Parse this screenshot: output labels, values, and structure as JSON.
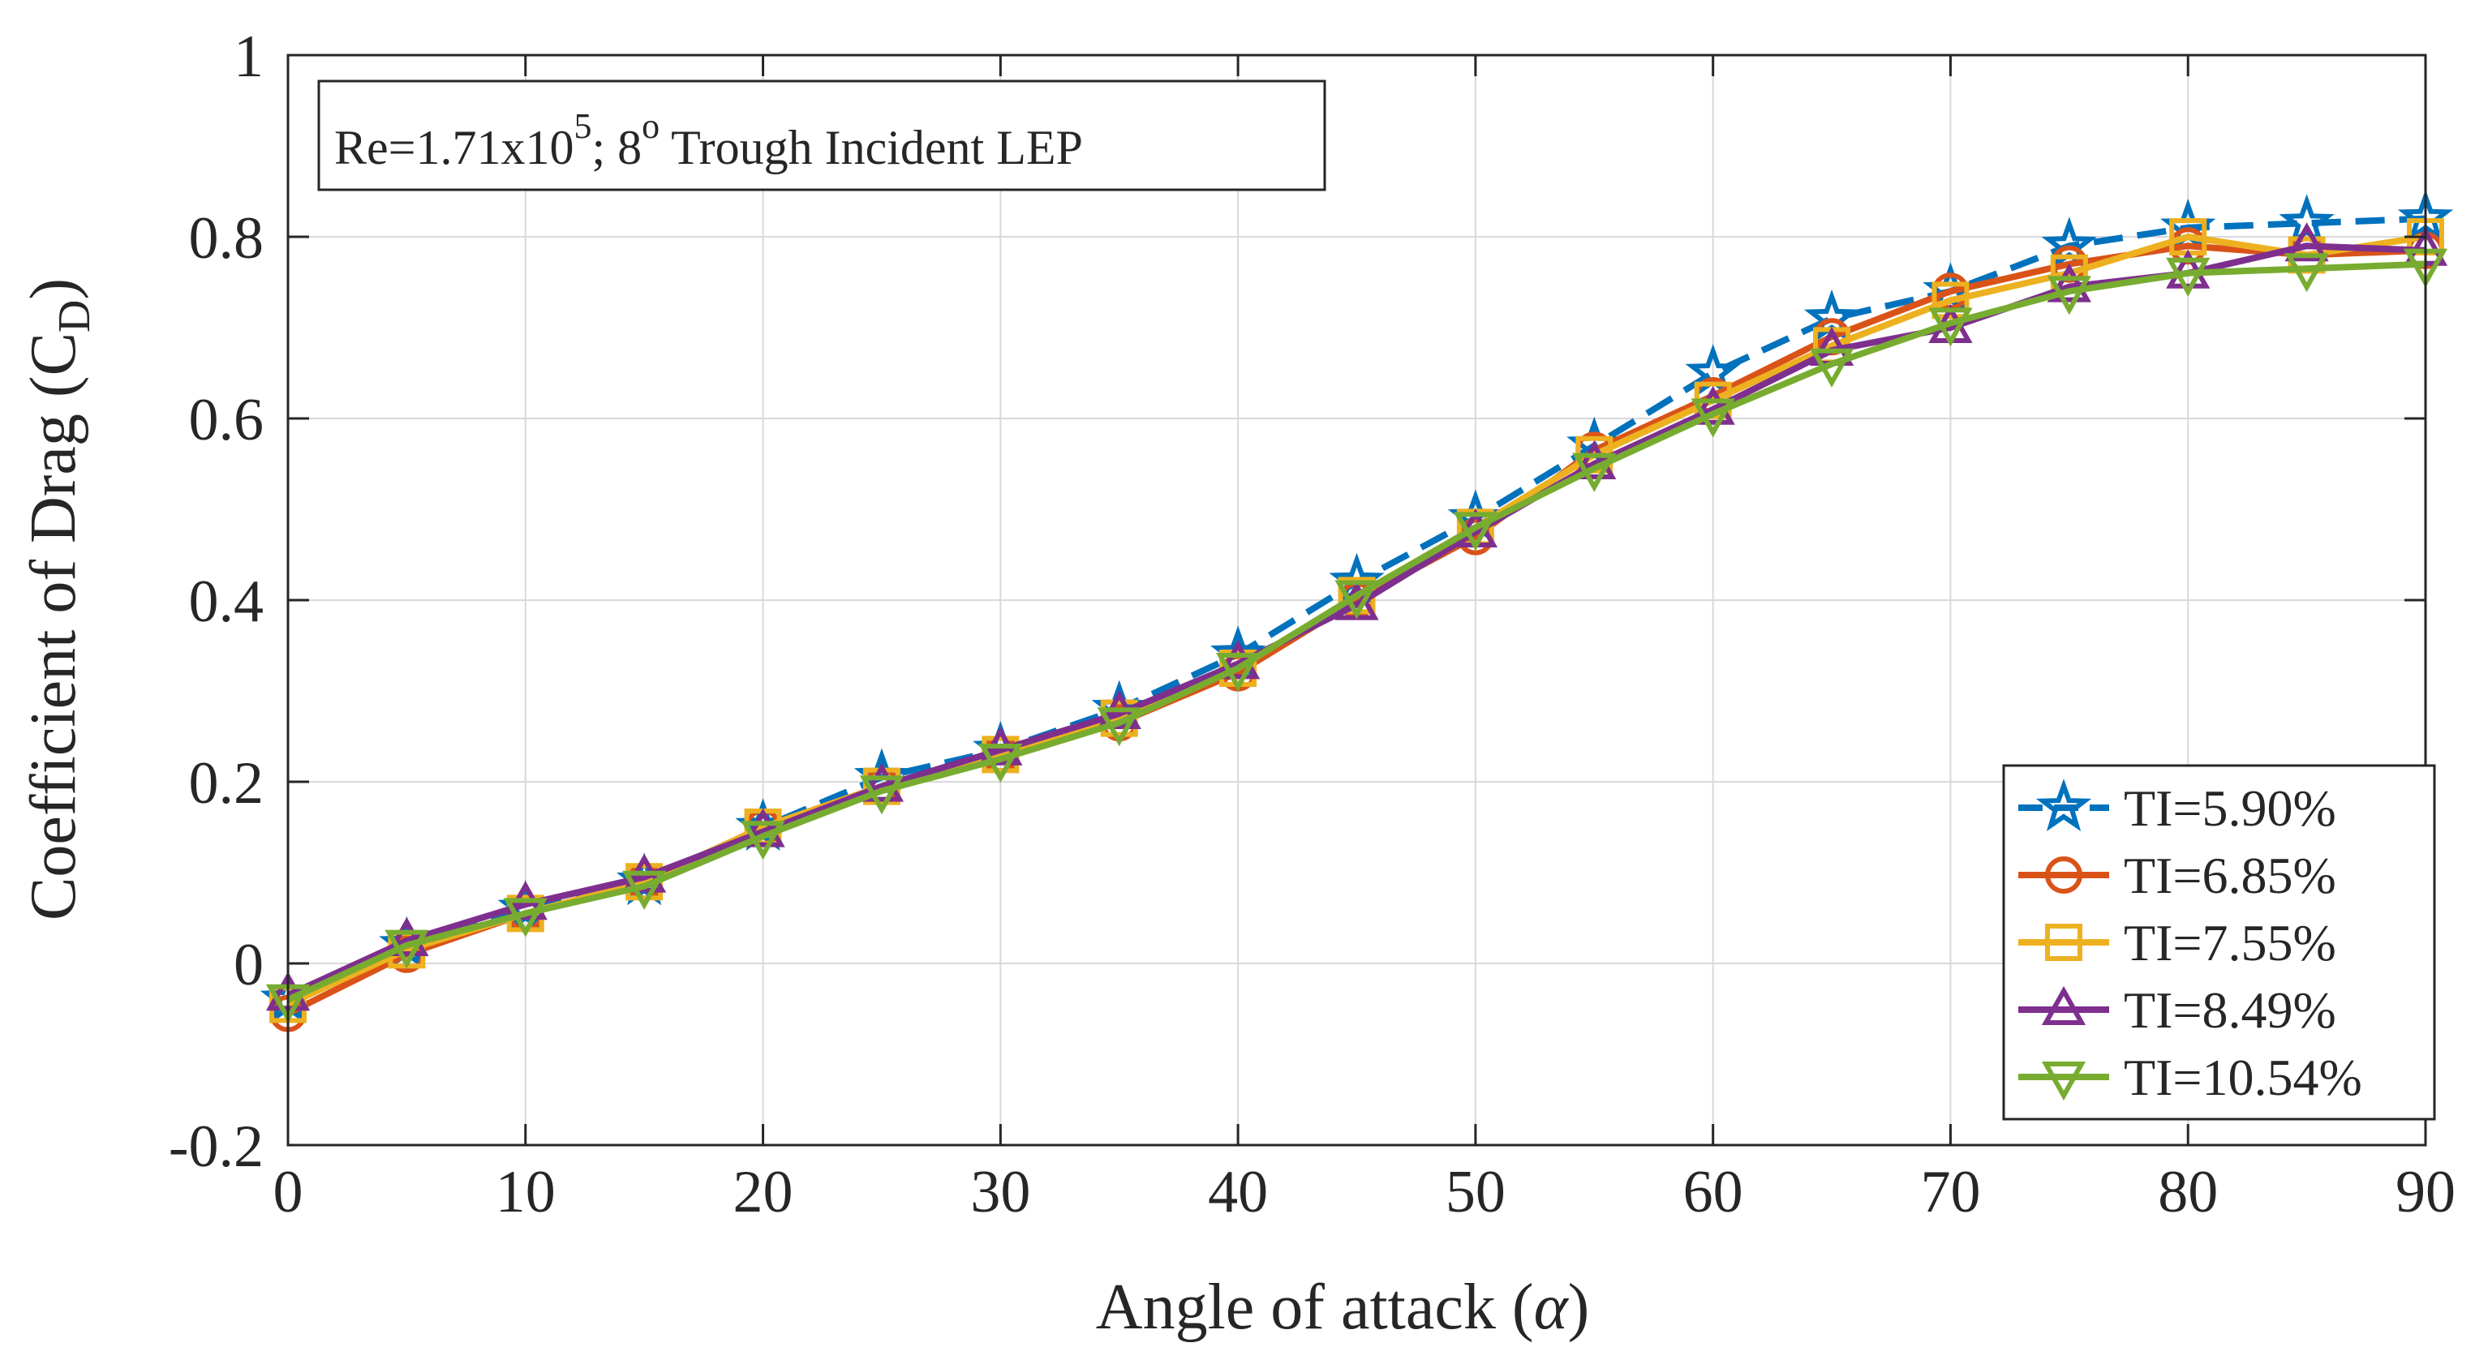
{
  "chart_data": {
    "type": "line",
    "xlabel": "Angle of attack (",
    "xlabel_symbol": "α",
    "xlabel_end": ")",
    "ylabel": "Coefficient of Drag (C",
    "ylabel_sub": "D",
    "ylabel_end": ")",
    "xlim": [
      0,
      90
    ],
    "ylim": [
      -0.2,
      1
    ],
    "xticks": [
      0,
      10,
      20,
      30,
      40,
      50,
      60,
      70,
      80,
      90
    ],
    "yticks": [
      -0.2,
      0,
      0.2,
      0.4,
      0.6,
      0.8,
      1
    ],
    "ytick_labels": [
      "-0.2",
      "0",
      "0.2",
      "0.4",
      "0.6",
      "0.8",
      "1"
    ],
    "grid": true,
    "legend_position": "bottom-right",
    "annotation": {
      "prefix": "Re=1.71x10",
      "sup1": "5",
      "middle": "; 8",
      "sup2": "o",
      "suffix": " Trough Incident LEP"
    },
    "x": [
      0,
      5,
      10,
      15,
      20,
      25,
      30,
      35,
      40,
      45,
      50,
      55,
      60,
      65,
      70,
      75,
      80,
      85,
      90
    ],
    "series": [
      {
        "name": "TI=5.90%",
        "color": "#0072BD",
        "marker": "star",
        "dashed": true,
        "values": [
          -0.04,
          0.02,
          0.06,
          0.09,
          0.15,
          0.205,
          0.235,
          0.28,
          0.34,
          0.42,
          0.49,
          0.57,
          0.65,
          0.71,
          0.74,
          0.79,
          0.81,
          0.815,
          0.82
        ]
      },
      {
        "name": "TI=6.85%",
        "color": "#D95319",
        "marker": "circle",
        "dashed": false,
        "values": [
          -0.055,
          0.01,
          0.055,
          0.09,
          0.15,
          0.195,
          0.23,
          0.265,
          0.32,
          0.4,
          0.47,
          0.565,
          0.625,
          0.69,
          0.74,
          0.77,
          0.79,
          0.78,
          0.785
        ]
      },
      {
        "name": "TI=7.55%",
        "color": "#EDB120",
        "marker": "square",
        "dashed": false,
        "values": [
          -0.045,
          0.015,
          0.055,
          0.09,
          0.15,
          0.195,
          0.23,
          0.27,
          0.325,
          0.405,
          0.48,
          0.56,
          0.62,
          0.68,
          0.73,
          0.76,
          0.8,
          0.78,
          0.8
        ]
      },
      {
        "name": "TI=8.49%",
        "color": "#7E2F8E",
        "marker": "triangle-up",
        "dashed": false,
        "values": [
          -0.035,
          0.025,
          0.065,
          0.095,
          0.145,
          0.195,
          0.235,
          0.275,
          0.33,
          0.395,
          0.475,
          0.55,
          0.61,
          0.675,
          0.7,
          0.745,
          0.76,
          0.79,
          0.785
        ]
      },
      {
        "name": "TI=10.54%",
        "color": "#77AC30",
        "marker": "triangle-down",
        "dashed": false,
        "values": [
          -0.04,
          0.02,
          0.055,
          0.085,
          0.14,
          0.19,
          0.225,
          0.265,
          0.325,
          0.405,
          0.48,
          0.545,
          0.605,
          0.66,
          0.705,
          0.74,
          0.76,
          0.765,
          0.77
        ]
      }
    ]
  }
}
